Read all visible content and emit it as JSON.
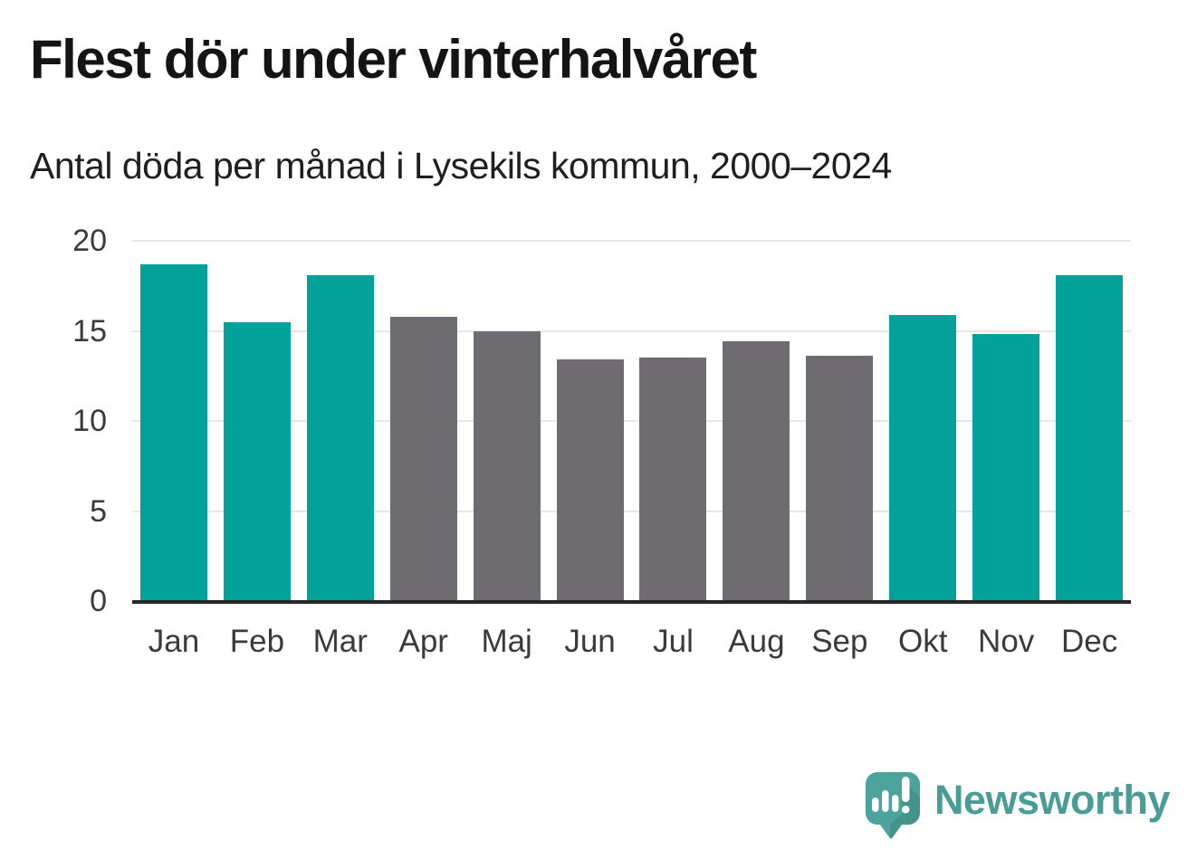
{
  "header": {
    "title": "Flest dör under vinterhalvåret",
    "subtitle": "Antal döda per månad i Lysekils kommun, 2000–2024"
  },
  "chart_data": {
    "type": "bar",
    "title": "Flest dör under vinterhalvåret",
    "subtitle": "Antal döda per månad i Lysekils kommun, 2000–2024",
    "categories": [
      "Jan",
      "Feb",
      "Mar",
      "Apr",
      "Maj",
      "Jun",
      "Jul",
      "Aug",
      "Sep",
      "Okt",
      "Nov",
      "Dec"
    ],
    "values": [
      18.7,
      15.5,
      18.1,
      15.8,
      15.0,
      13.4,
      13.5,
      14.4,
      13.6,
      15.9,
      14.8,
      18.1
    ],
    "highlight": [
      true,
      true,
      true,
      false,
      false,
      false,
      false,
      false,
      false,
      true,
      true,
      true
    ],
    "colors": {
      "highlight": "#00a29a",
      "default": "#6e6c70",
      "axis_line": "#262626",
      "grid": "#e6e6e6",
      "tick_text": "#3a3a3a"
    },
    "xlabel": "",
    "ylabel": "",
    "ylim": [
      0,
      20
    ],
    "yticks": [
      0,
      5,
      10,
      15,
      20
    ],
    "grid": true,
    "legend": false
  },
  "footer": {
    "brand": "Newsworthy",
    "logo_icon": "speech-bubble-bar-chart-icon",
    "brand_color": "#4a9c96",
    "logo_fill": "#4ba39c"
  }
}
